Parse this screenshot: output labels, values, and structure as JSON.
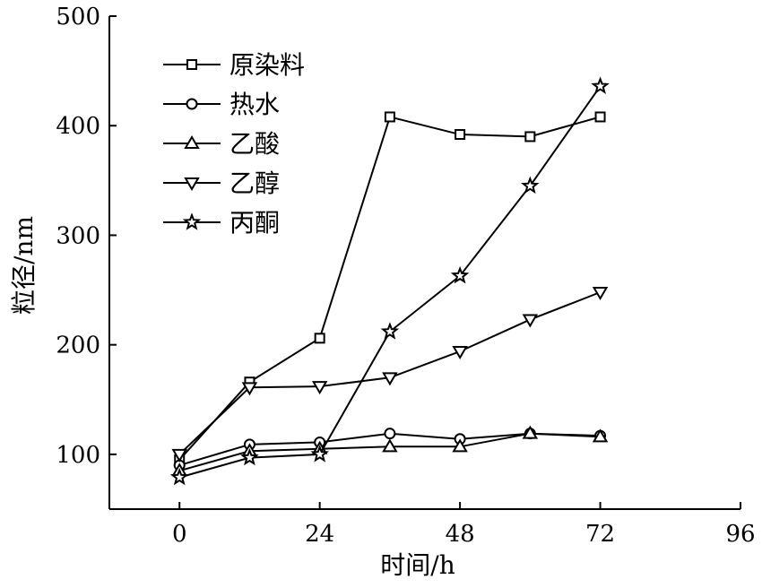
{
  "chart_data": {
    "type": "line",
    "title": "",
    "xlabel": "时间/h",
    "ylabel": "粒径/nm",
    "xlim": [
      -12,
      96
    ],
    "ylim": [
      50,
      500
    ],
    "x_ticks": [
      0,
      24,
      48,
      72,
      96
    ],
    "y_ticks": [
      100,
      200,
      300,
      400,
      500
    ],
    "grid": false,
    "legend_position": "top-left",
    "x": [
      0,
      12,
      24,
      36,
      48,
      60,
      72
    ],
    "series": [
      {
        "name": "原染料",
        "marker": "square",
        "values": [
          95,
          166,
          206,
          408,
          392,
          390,
          408
        ]
      },
      {
        "name": "热水",
        "marker": "circle",
        "values": [
          90,
          109,
          111,
          119,
          114,
          119,
          117
        ]
      },
      {
        "name": "乙酸",
        "marker": "triangle-up",
        "values": [
          85,
          103,
          105,
          107,
          107,
          119,
          116
        ]
      },
      {
        "name": "乙醇",
        "marker": "triangle-down",
        "values": [
          100,
          161,
          162,
          170,
          194,
          223,
          248
        ]
      },
      {
        "name": "丙酮",
        "marker": "star",
        "values": [
          79,
          97,
          100,
          212,
          263,
          345,
          436
        ]
      }
    ]
  }
}
